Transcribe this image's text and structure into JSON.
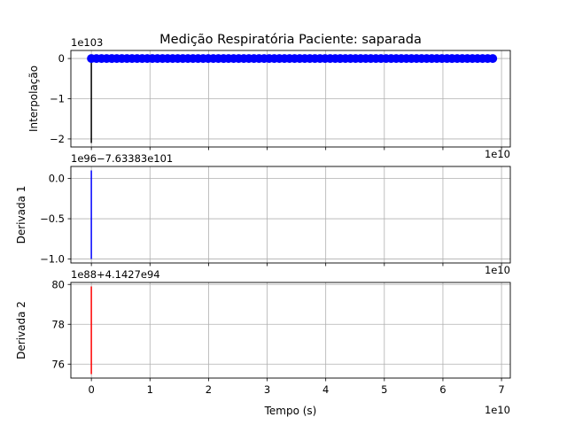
{
  "title": "Medição Respiratória Paciente: saparada",
  "xlabel": "Tempo (s)",
  "colors": {
    "markers": "#0000ff",
    "line1": "#000000",
    "line2": "#0000ff",
    "line3": "#ff0000",
    "grid": "#b0b0b0"
  },
  "chart_data": [
    {
      "type": "line+scatter",
      "ylabel": "Interpolação",
      "offset_text": "1e103",
      "x_offset_text": "1e10",
      "xlim": [
        -0.35,
        7.15
      ],
      "ylim": [
        -2.2,
        0.2
      ],
      "xticks": [
        0,
        1,
        2,
        3,
        4,
        5,
        6,
        7
      ],
      "yticks": [
        0,
        -1,
        -2
      ],
      "ytick_labels": [
        "0",
        "−1",
        "−2"
      ],
      "series": [
        {
          "kind": "line",
          "x": [
            0,
            0,
            0.05,
            6.85
          ],
          "y": [
            -2.1,
            0,
            0,
            0
          ]
        },
        {
          "kind": "scatter",
          "x_start": 0,
          "x_end": 6.85,
          "count": 80,
          "y": 0
        }
      ]
    },
    {
      "type": "line",
      "ylabel": "Derivada 1",
      "offset_text": "1e96−7.63383e101",
      "x_offset_text": "1e10",
      "xlim": [
        -0.35,
        7.15
      ],
      "ylim": [
        -1.05,
        0.15
      ],
      "xticks": [
        0,
        1,
        2,
        3,
        4,
        5,
        6,
        7
      ],
      "yticks": [
        0.0,
        -0.5,
        -1.0
      ],
      "ytick_labels": [
        "0.0",
        "−0.5",
        "−1.0"
      ],
      "series": [
        {
          "kind": "line",
          "x": [
            0,
            0
          ],
          "y": [
            -1.0,
            0.1
          ]
        }
      ]
    },
    {
      "type": "line",
      "ylabel": "Derivada 2",
      "offset_text": "1e88+4.1427e94",
      "xlim": [
        -0.35,
        7.15
      ],
      "ylim": [
        75.3,
        80.1
      ],
      "xticks": [
        0,
        1,
        2,
        3,
        4,
        5,
        6,
        7
      ],
      "xtick_labels": [
        "0",
        "1",
        "2",
        "3",
        "4",
        "5",
        "6",
        "7"
      ],
      "x_offset_text": "1e10",
      "yticks": [
        76,
        78,
        80
      ],
      "ytick_labels": [
        "76",
        "78",
        "80"
      ],
      "series": [
        {
          "kind": "line",
          "x": [
            0,
            0
          ],
          "y": [
            75.5,
            79.9
          ]
        }
      ]
    }
  ]
}
